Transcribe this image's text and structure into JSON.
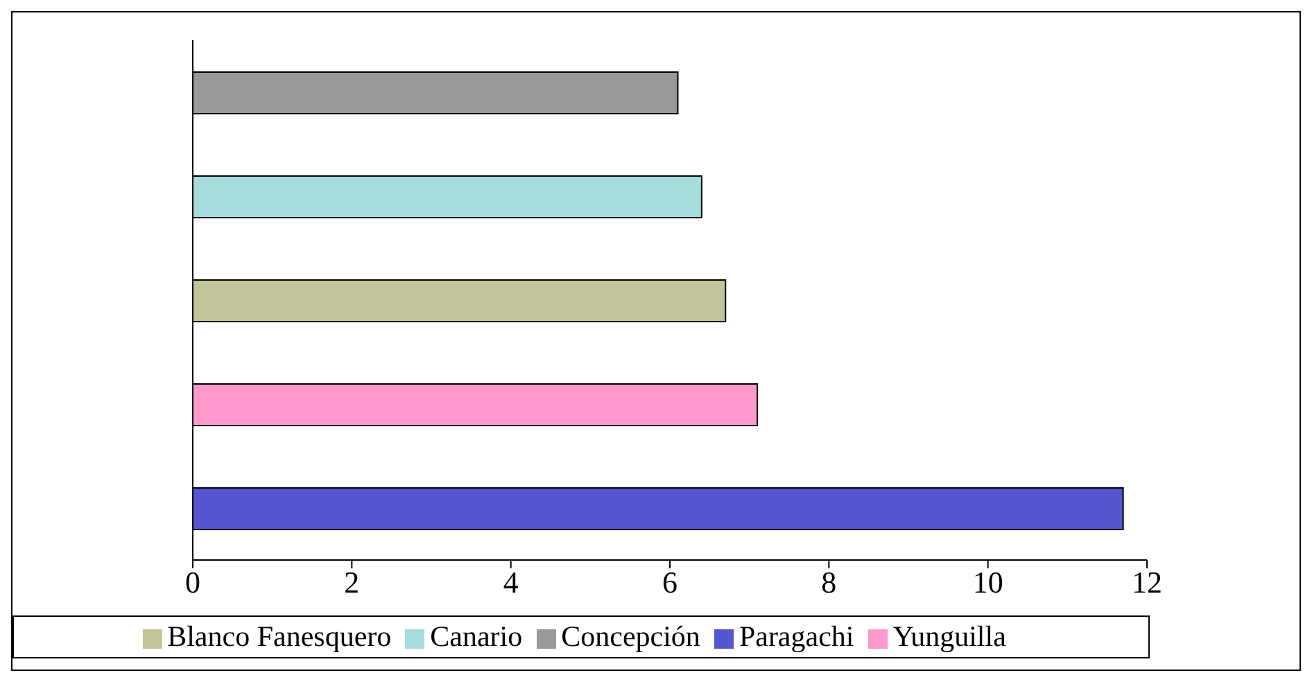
{
  "chart_data": {
    "type": "bar",
    "orientation": "horizontal",
    "stacked": true,
    "categories": [
      null,
      null,
      null,
      null,
      null
    ],
    "series": [
      {
        "name": "Paragachi",
        "color": "#5555d0",
        "values": [
          null,
          null,
          null,
          null,
          11.7
        ]
      },
      {
        "name": "Yunguilla",
        "color": "#ff99cc",
        "values": [
          null,
          null,
          null,
          7.1,
          null
        ]
      },
      {
        "name": "Blanco Fanesquero",
        "color": "#c4c49a",
        "values": [
          null,
          null,
          6.7,
          null,
          null
        ]
      },
      {
        "name": "Canario",
        "color": "#a6dcdc",
        "values": [
          null,
          6.4,
          null,
          null,
          null
        ]
      },
      {
        "name": "Concepción",
        "color": "#999999",
        "values": [
          6.1,
          null,
          null,
          null,
          null
        ]
      }
    ],
    "xlim": [
      0,
      12
    ],
    "xticks": [
      0,
      2,
      4,
      6,
      8,
      10,
      12
    ],
    "grid": false,
    "legend": "bottom"
  }
}
